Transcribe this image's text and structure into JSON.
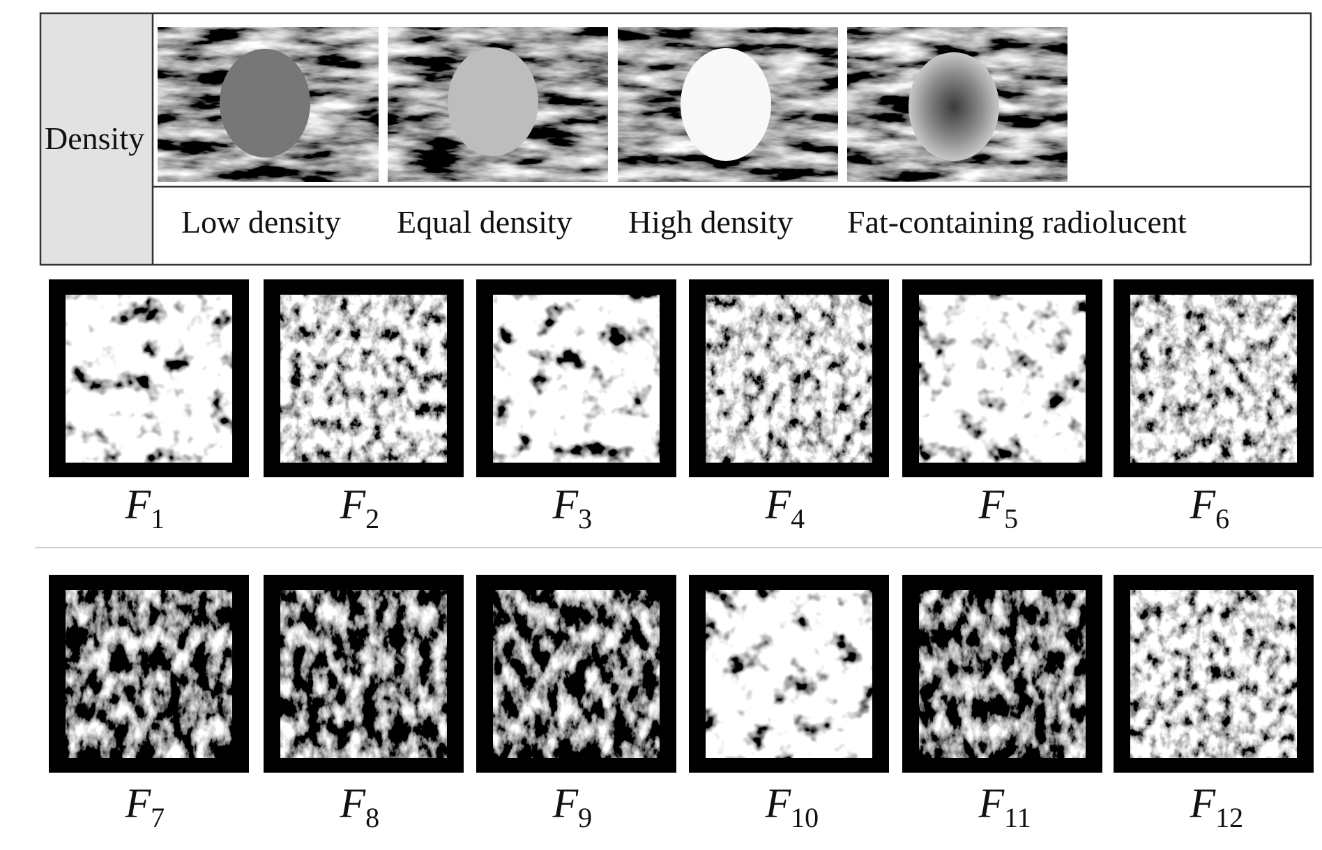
{
  "table": {
    "row_label": "Density",
    "captions": [
      "Low density",
      "Equal density",
      "High density",
      "Fat-containing radiolucent"
    ]
  },
  "features": [
    {
      "symbol": "F",
      "sub": "1"
    },
    {
      "symbol": "F",
      "sub": "2"
    },
    {
      "symbol": "F",
      "sub": "3"
    },
    {
      "symbol": "F",
      "sub": "4"
    },
    {
      "symbol": "F",
      "sub": "5"
    },
    {
      "symbol": "F",
      "sub": "6"
    },
    {
      "symbol": "F",
      "sub": "7"
    },
    {
      "symbol": "F",
      "sub": "8"
    },
    {
      "symbol": "F",
      "sub": "9"
    },
    {
      "symbol": "F",
      "sub": "10"
    },
    {
      "symbol": "F",
      "sub": "11"
    },
    {
      "symbol": "F",
      "sub": "12"
    }
  ]
}
